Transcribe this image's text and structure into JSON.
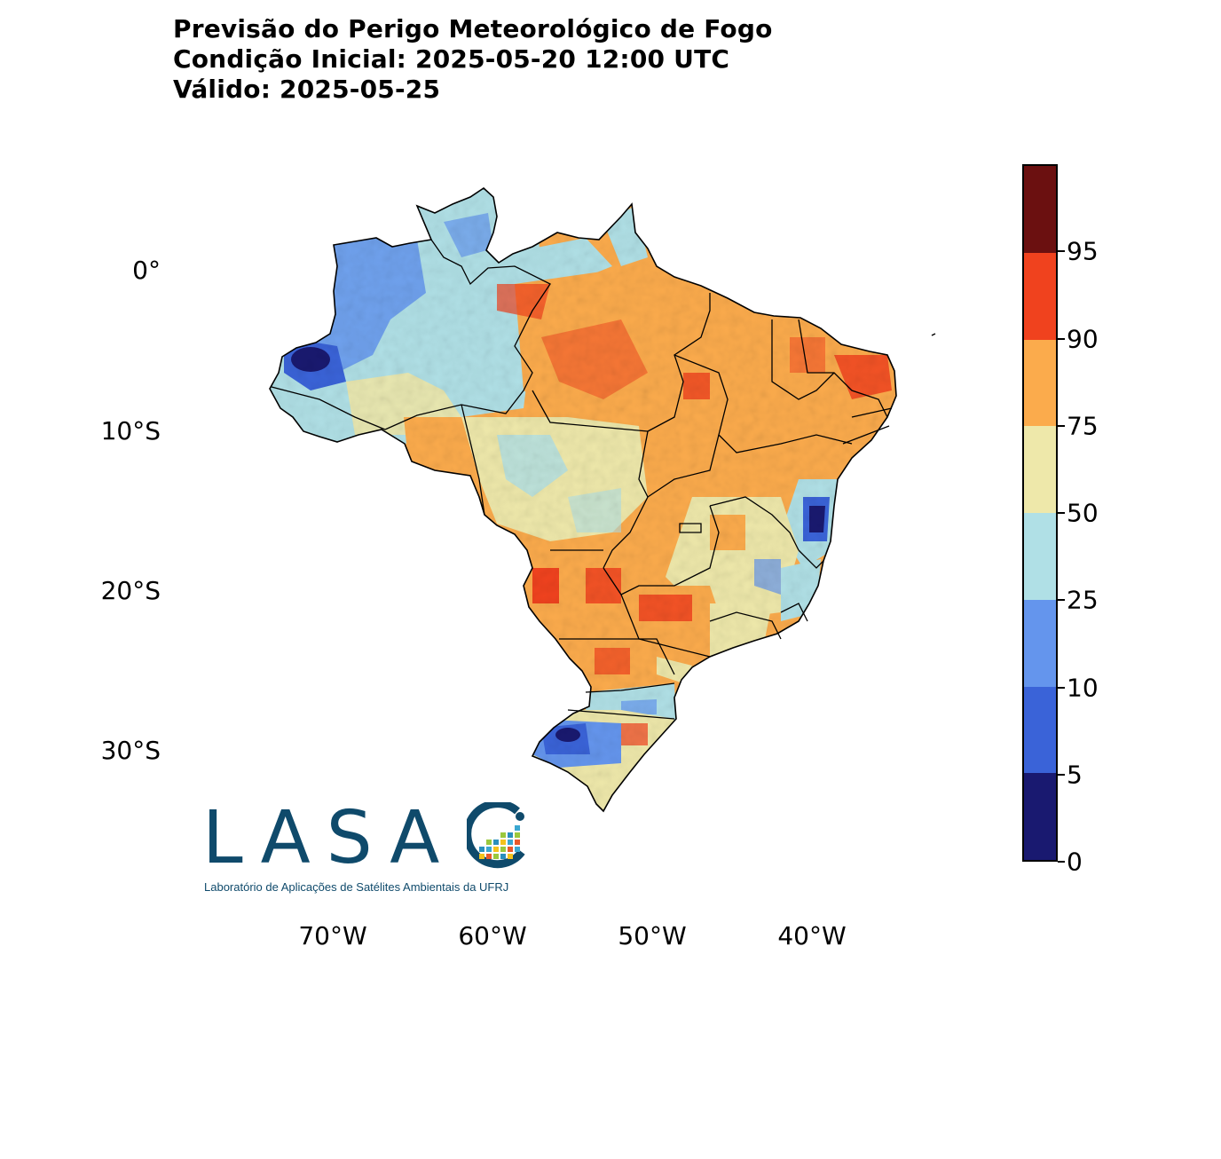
{
  "title": {
    "line1": "Previsão do Perigo Meteorológico de Fogo",
    "line2": "Condição Inicial: 2025-05-20 12:00 UTC",
    "line3": "Válido: 2025-05-25"
  },
  "axes": {
    "lat_ticks": [
      {
        "label": "0°",
        "value": 0
      },
      {
        "label": "10°S",
        "value": -10
      },
      {
        "label": "20°S",
        "value": -20
      },
      {
        "label": "30°S",
        "value": -30
      }
    ],
    "lon_ticks": [
      {
        "label": "70°W",
        "value": -70
      },
      {
        "label": "60°W",
        "value": -60
      },
      {
        "label": "50°W",
        "value": -50
      },
      {
        "label": "40°W",
        "value": -40
      }
    ]
  },
  "colorbar": {
    "ticks": [
      "0",
      "5",
      "10",
      "25",
      "50",
      "75",
      "90",
      "95"
    ],
    "colors": [
      "#191970",
      "#3a63d8",
      "#6495ed",
      "#b0e0e6",
      "#eee8aa",
      "#fbab4c",
      "#f0421e",
      "#6b1010"
    ]
  },
  "logo": {
    "text": "LASA",
    "subtitle": "Laboratório de Aplicações de Satélites Ambientais da UFRJ"
  },
  "colors": {
    "accent": "#0f4a6b"
  }
}
